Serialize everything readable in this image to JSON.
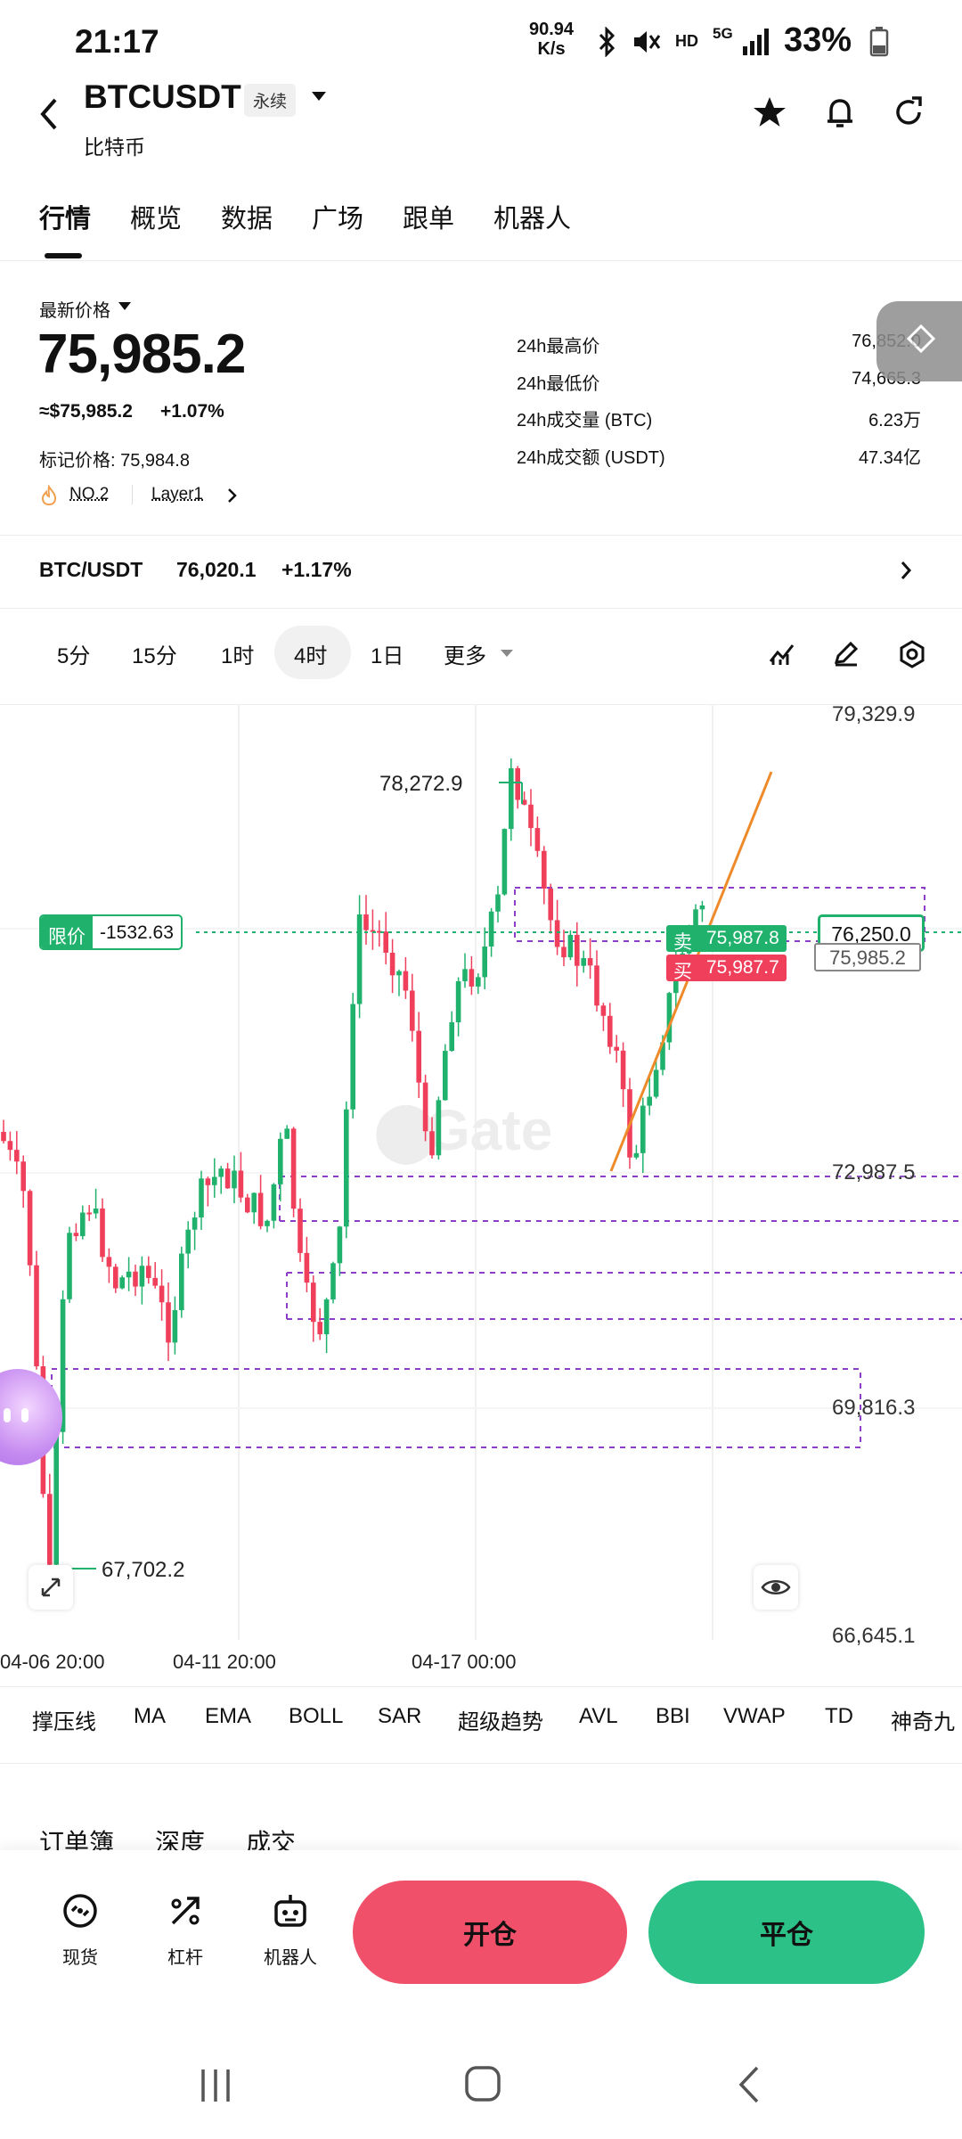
{
  "status_bar": {
    "time": "21:17",
    "net_speed_value": "90.94",
    "net_speed_unit": "K/s",
    "hd": "HD",
    "fiveg": "5G",
    "battery": "33%"
  },
  "header": {
    "symbol": "BTCUSDT",
    "contract_type": "永续",
    "subtitle": "比特币"
  },
  "tabs": [
    {
      "label": "行情"
    },
    {
      "label": "概览"
    },
    {
      "label": "数据"
    },
    {
      "label": "广场"
    },
    {
      "label": "跟单"
    },
    {
      "label": "机器人"
    }
  ],
  "price": {
    "label": "最新价格",
    "last": "75,985.2",
    "usd": "≈$75,985.2",
    "change": "+1.07%",
    "mark_label": "标记价格: 75,984.8",
    "rank": "NO.2",
    "category": "Layer1"
  },
  "stats": [
    {
      "label": "24h最高价",
      "value": "76,852.0"
    },
    {
      "label": "24h最低价",
      "value": "74,665.3"
    },
    {
      "label": "24h成交量 (BTC)",
      "value": "6.23万"
    },
    {
      "label": "24h成交额 (USDT)",
      "value": "47.34亿"
    }
  ],
  "spot_row": {
    "pair": "BTC/USDT",
    "price": "76,020.1",
    "change": "+1.17%"
  },
  "timeframes": [
    {
      "label": "5分"
    },
    {
      "label": "15分"
    },
    {
      "label": "1时"
    },
    {
      "label": "4时"
    },
    {
      "label": "1日"
    },
    {
      "label": "更多"
    }
  ],
  "active_timeframe": "4时",
  "chart": {
    "y_labels": [
      "79,329.9",
      "72,987.5",
      "69,816.3",
      "66,645.1"
    ],
    "x_labels": [
      "04-06 20:00",
      "04-11 20:00",
      "04-17 00:00"
    ],
    "high_label": "78,272.9",
    "low_label": "67,702.2",
    "limit_tag": "限价",
    "limit_value": "-1532.63",
    "limit_price": "76,250.0",
    "current_price_tag": "75,985.2",
    "sell_label": "卖",
    "sell_price": "75,987.8",
    "buy_label": "买",
    "buy_price": "75,987.7",
    "watermark": "Gate",
    "up_color": "#20b26c",
    "down_color": "#ef3f5b"
  },
  "indicators": [
    {
      "label": "撑压线"
    },
    {
      "label": "MA"
    },
    {
      "label": "EMA"
    },
    {
      "label": "BOLL"
    },
    {
      "label": "SAR"
    },
    {
      "label": "超级趋势"
    },
    {
      "label": "AVL"
    },
    {
      "label": "BBI"
    },
    {
      "label": "VWAP"
    },
    {
      "label": "TD"
    },
    {
      "label": "神奇九"
    }
  ],
  "book_tabs": [
    {
      "label": "订单簿"
    },
    {
      "label": "深度"
    },
    {
      "label": "成交"
    }
  ],
  "bottom_actions": [
    {
      "label": "现货",
      "icon": "spot-icon"
    },
    {
      "label": "杠杆",
      "icon": "leverage-icon"
    },
    {
      "label": "机器人",
      "icon": "robot-icon"
    }
  ],
  "open_button": "开仓",
  "close_button": "平仓",
  "colors": {
    "open": "#f1506a",
    "close": "#2cc187"
  }
}
